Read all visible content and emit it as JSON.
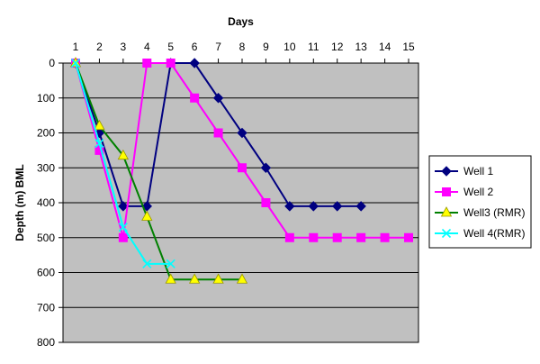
{
  "chart_data": {
    "type": "line",
    "title": "",
    "xlabel": "Days",
    "ylabel": "Depth (m) BML",
    "x_axis_position": "top",
    "y_axis_inverted": true,
    "xlim": [
      1,
      15
    ],
    "ylim": [
      0,
      800
    ],
    "x_ticks": [
      "1",
      "2",
      "3",
      "4",
      "5",
      "6",
      "7",
      "8",
      "9",
      "10",
      "11",
      "12",
      "13",
      "14",
      "15"
    ],
    "y_ticks": [
      "0",
      "100",
      "200",
      "300",
      "400",
      "500",
      "600",
      "700",
      "800"
    ],
    "grid": "horizontal",
    "legend_position": "right",
    "plot_background": "#c0c0c0",
    "series": [
      {
        "name": "Well 1",
        "color": "#000080",
        "marker": "diamond",
        "points": [
          [
            1,
            0
          ],
          [
            2,
            200
          ],
          [
            3,
            410
          ],
          [
            4,
            410
          ],
          [
            5,
            0
          ],
          [
            6,
            0
          ],
          [
            7,
            100
          ],
          [
            8,
            200
          ],
          [
            9,
            300
          ],
          [
            10,
            410
          ],
          [
            11,
            410
          ],
          [
            12,
            410
          ],
          [
            13,
            410
          ]
        ]
      },
      {
        "name": "Well 2",
        "color": "#ff00ff",
        "marker": "square",
        "points": [
          [
            1,
            0
          ],
          [
            2,
            250
          ],
          [
            3,
            500
          ],
          [
            4,
            0
          ],
          [
            5,
            0
          ],
          [
            6,
            100
          ],
          [
            7,
            200
          ],
          [
            8,
            300
          ],
          [
            9,
            400
          ],
          [
            10,
            500
          ],
          [
            11,
            500
          ],
          [
            12,
            500
          ],
          [
            13,
            500
          ],
          [
            14,
            500
          ],
          [
            15,
            500
          ]
        ]
      },
      {
        "name": "Well3 (RMR)",
        "color": "#008000",
        "marker_color": "#ffff00",
        "marker": "triangle",
        "points": [
          [
            1,
            0
          ],
          [
            2,
            180
          ],
          [
            3,
            265
          ],
          [
            4,
            440
          ],
          [
            5,
            620
          ],
          [
            6,
            620
          ],
          [
            7,
            620
          ],
          [
            8,
            620
          ]
        ]
      },
      {
        "name": "Well 4(RMR)",
        "color": "#00ffff",
        "marker": "x",
        "points": [
          [
            1,
            0
          ],
          [
            2,
            230
          ],
          [
            3,
            470
          ],
          [
            4,
            575
          ],
          [
            5,
            575
          ]
        ]
      }
    ]
  }
}
